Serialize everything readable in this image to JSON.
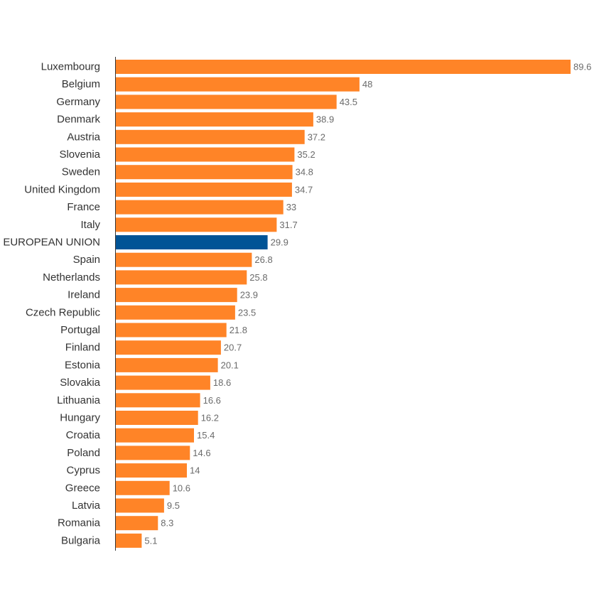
{
  "chart_data": {
    "type": "bar",
    "orientation": "horizontal",
    "categories": [
      "Luxembourg",
      "Belgium",
      "Germany",
      "Denmark",
      "Austria",
      "Slovenia",
      "Sweden",
      "United Kingdom",
      "France",
      "Italy",
      "EUROPEAN UNION",
      "Spain",
      "Netherlands",
      "Ireland",
      "Czech Republic",
      "Portugal",
      "Finland",
      "Estonia",
      "Slovakia",
      "Lithuania",
      "Hungary",
      "Croatia",
      "Poland",
      "Cyprus",
      "Greece",
      "Latvia",
      "Romania",
      "Bulgaria"
    ],
    "values": [
      89.6,
      48,
      43.5,
      38.9,
      37.2,
      35.2,
      34.8,
      34.7,
      33,
      31.7,
      29.9,
      26.8,
      25.8,
      23.9,
      23.5,
      21.8,
      20.7,
      20.1,
      18.6,
      16.6,
      16.2,
      15.4,
      14.6,
      14,
      10.6,
      9.5,
      8.3,
      5.1
    ],
    "value_labels": [
      "89.6",
      "48",
      "43.5",
      "38.9",
      "37.2",
      "35.2",
      "34.8",
      "34.7",
      "33",
      "31.7",
      "29.9",
      "26.8",
      "25.8",
      "23.9",
      "23.5",
      "21.8",
      "20.7",
      "20.1",
      "18.6",
      "16.6",
      "16.2",
      "15.4",
      "14.6",
      "14",
      "10.6",
      "9.5",
      "8.3",
      "5.1"
    ],
    "highlight": "EUROPEAN UNION",
    "xlim": [
      0,
      89.6
    ],
    "grid": false,
    "legend": "none",
    "title": "",
    "xlabel": "",
    "ylabel": "",
    "colors": {
      "bar": "#FF8427",
      "highlight": "#005496",
      "axis": "#333333",
      "category_text": "#333333",
      "value_text": "#6b6b6b"
    }
  }
}
